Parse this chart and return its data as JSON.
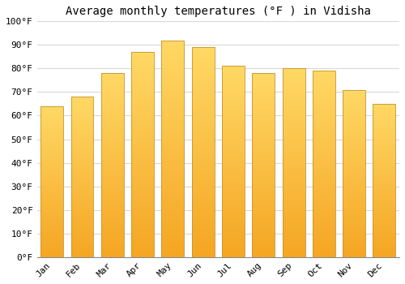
{
  "title": "Average monthly temperatures (°F ) in Vidisha",
  "months": [
    "Jan",
    "Feb",
    "Mar",
    "Apr",
    "May",
    "Jun",
    "Jul",
    "Aug",
    "Sep",
    "Oct",
    "Nov",
    "Dec"
  ],
  "values": [
    64,
    68,
    78,
    87,
    92,
    89,
    81,
    78,
    80,
    79,
    71,
    65
  ],
  "bar_color_bottom": "#F5A623",
  "bar_color_top": "#FFD966",
  "bar_edge_color": "#C8922A",
  "ylim": [
    0,
    100
  ],
  "yticks": [
    0,
    10,
    20,
    30,
    40,
    50,
    60,
    70,
    80,
    90,
    100
  ],
  "ytick_labels": [
    "0°F",
    "10°F",
    "20°F",
    "30°F",
    "40°F",
    "50°F",
    "60°F",
    "70°F",
    "80°F",
    "90°F",
    "100°F"
  ],
  "background_color": "#ffffff",
  "grid_color": "#d8d8d8",
  "title_fontsize": 10,
  "tick_fontsize": 8,
  "font_family": "monospace",
  "bar_width": 0.75
}
